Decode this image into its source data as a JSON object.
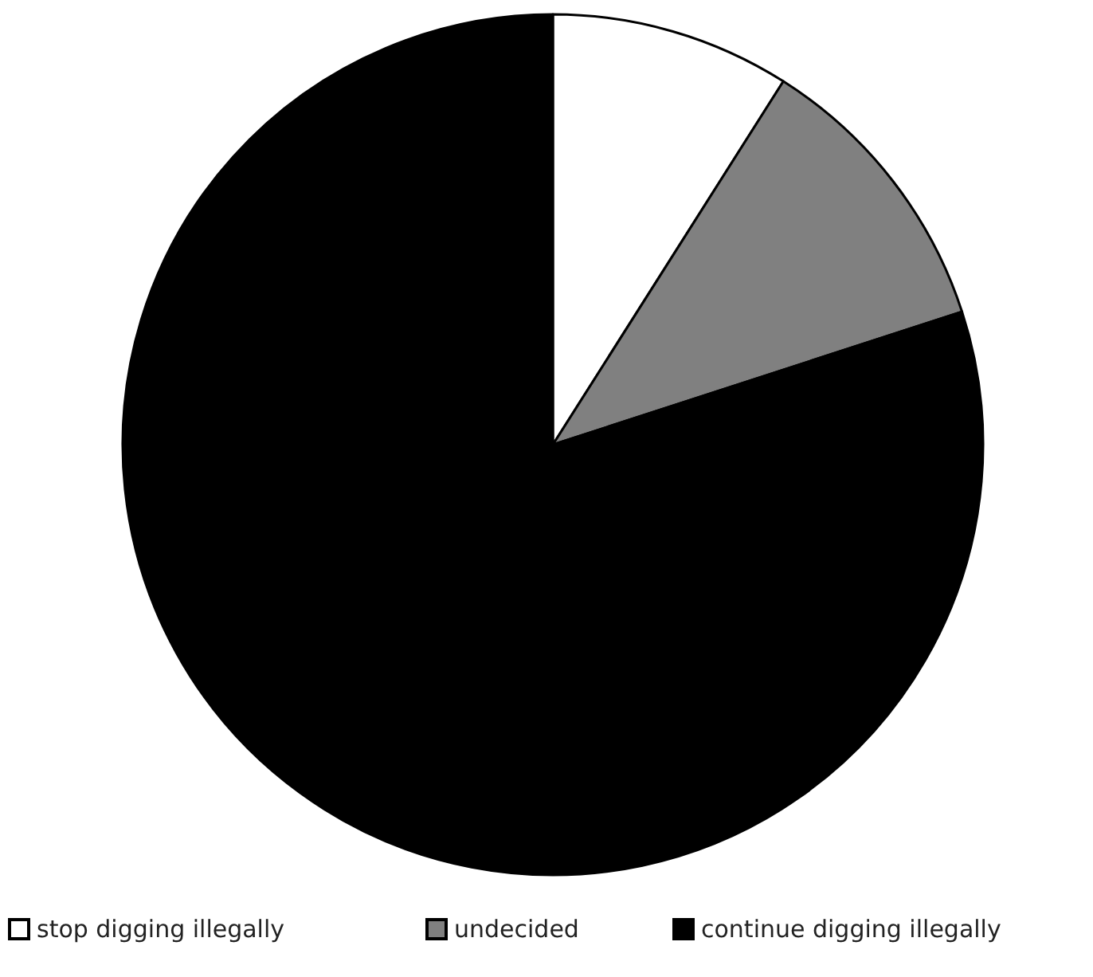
{
  "chart_data": {
    "type": "pie",
    "categories": [
      "stop digging illegally",
      "undecided",
      "continue digging illegally"
    ],
    "values": [
      9,
      11,
      80
    ],
    "colors": [
      "#ffffff",
      "#808080",
      "#000000"
    ],
    "legend": "bottom"
  }
}
